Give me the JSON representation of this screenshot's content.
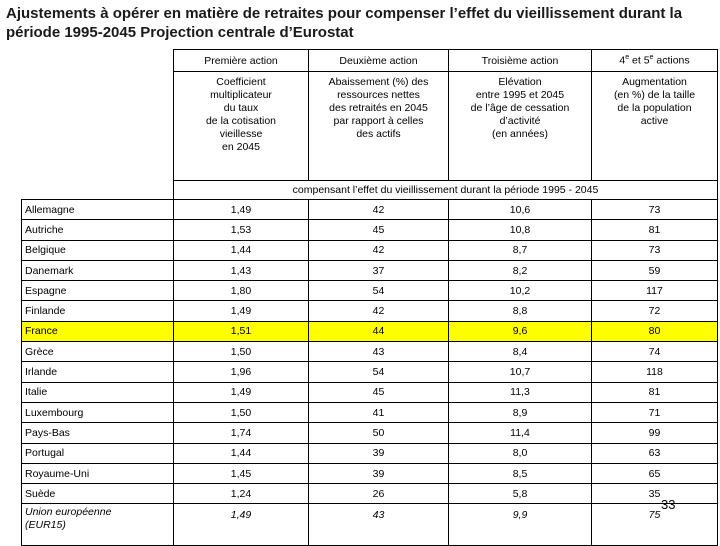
{
  "title": "Ajustements à opérer en matière de retraites pour compenser l’effet du vieillissement durant la période 1995-2045 Projection centrale d’Eurostat",
  "headers": {
    "col1": "Première action",
    "col2": "Deuxième action",
    "col3": "Troisième action",
    "col4_a": "4",
    "col4_sup1": "e",
    "col4_b": " et 5",
    "col4_sup2": "e",
    "col4_c": " actions"
  },
  "descriptions": {
    "col1": "Coefficient\nmultiplicateur\ndu taux\nde la cotisation\nvieillesse\nen 2045",
    "col2": "Abaissement (%) des\nressources nettes\ndes retraités en 2045\npar rapport à celles\ndes actifs",
    "col3": "Elévation\nentre 1995 et 2045\nde l’âge de cessation\nd’activité\n(en années)",
    "col4": "Augmentation\n(en %) de la taille\nde la population\nactive"
  },
  "note": "compensant l’effet du vieillissement durant la période 1995 - 2045",
  "rows": [
    {
      "country": "Allemagne",
      "v1": "1,49",
      "v2": "42",
      "v3": "10,6",
      "v4": "73"
    },
    {
      "country": "Autriche",
      "v1": "1,53",
      "v2": "45",
      "v3": "10,8",
      "v4": "81"
    },
    {
      "country": "Belgique",
      "v1": "1,44",
      "v2": "42",
      "v3": "8,7",
      "v4": "73"
    },
    {
      "country": "Danemark",
      "v1": "1,43",
      "v2": "37",
      "v3": "8,2",
      "v4": "59"
    },
    {
      "country": "Espagne",
      "v1": "1,80",
      "v2": "54",
      "v3": "10,2",
      "v4": "117"
    },
    {
      "country": "Finlande",
      "v1": "1,49",
      "v2": "42",
      "v3": "8,8",
      "v4": "72"
    },
    {
      "country": "France",
      "v1": "1,51",
      "v2": "44",
      "v3": "9,6",
      "v4": "80"
    },
    {
      "country": "Grèce",
      "v1": "1,50",
      "v2": "43",
      "v3": "8,4",
      "v4": "74"
    },
    {
      "country": "Irlande",
      "v1": "1,96",
      "v2": "54",
      "v3": "10,7",
      "v4": "118"
    },
    {
      "country": "Italie",
      "v1": "1,49",
      "v2": "45",
      "v3": "11,3",
      "v4": "81"
    },
    {
      "country": "Luxembourg",
      "v1": "1,50",
      "v2": "41",
      "v3": "8,9",
      "v4": "71"
    },
    {
      "country": "Pays-Bas",
      "v1": "1,74",
      "v2": "50",
      "v3": "11,4",
      "v4": "99"
    },
    {
      "country": "Portugal",
      "v1": "1,44",
      "v2": "39",
      "v3": "8,0",
      "v4": "63"
    },
    {
      "country": "Royaume-Uni",
      "v1": "1,45",
      "v2": "39",
      "v3": "8,5",
      "v4": "65"
    },
    {
      "country": "Suède",
      "v1": "1,24",
      "v2": "26",
      "v3": "5,8",
      "v4": "35"
    }
  ],
  "eu_row": {
    "country_line1": "Union européenne",
    "country_line2": "(EUR15)",
    "v1": "1,49",
    "v2": "43",
    "v3": "9,9",
    "v4": "75"
  },
  "highlight_color": "#ffff00",
  "page_number": "33"
}
